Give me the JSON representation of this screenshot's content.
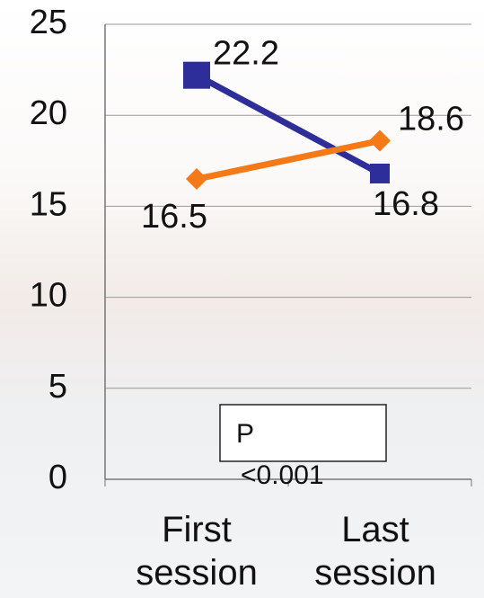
{
  "chart_data": {
    "type": "line",
    "categories": [
      "First session",
      "Last session"
    ],
    "series": [
      {
        "color": "#2e2e9a",
        "marker": "square",
        "values": [
          22.2,
          16.8
        ]
      },
      {
        "color": "#f47a18",
        "marker": "diamond",
        "values": [
          16.5,
          18.6
        ]
      }
    ],
    "ylim": [
      0,
      25
    ],
    "yticks": [
      0,
      5,
      10,
      15,
      20,
      25
    ],
    "grid": true,
    "annotation": [
      "P",
      "<0.001"
    ]
  }
}
